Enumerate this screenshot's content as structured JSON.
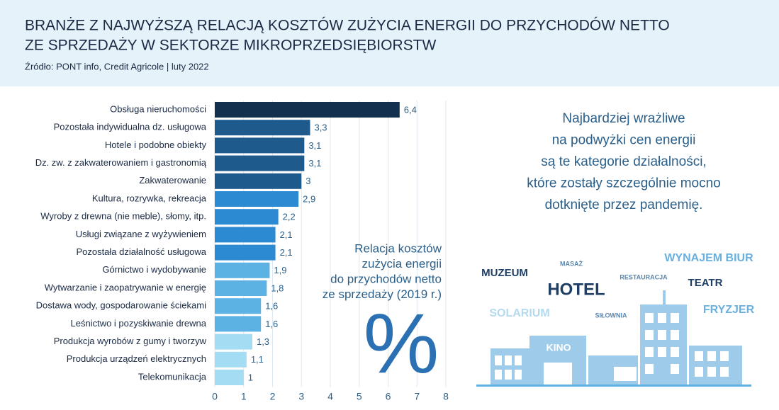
{
  "header": {
    "title_lines": [
      "BRANŻE Z NAJWYŻSZĄ RELACJĄ KOSZTÓW ZUŻYCIA ENERGII DO PRZYCHODÓW NETTO",
      "ZE SPRZEDAŻY W SEKTORZE MIKROPRZEDSIĘBIORSTW"
    ],
    "source": "Źródło: PONT info, Credit Agricole | luty 2022"
  },
  "chart_data": {
    "type": "hbar",
    "categories": [
      "Obsługa nieruchomości",
      "Pozostała indywidualna dz. usługowa",
      "Hotele i podobne obiekty",
      "Dz. zw. z zakwaterowaniem i gastronomią",
      "Zakwaterowanie",
      "Kultura, rozrywka, rekreacja",
      "Wyroby z drewna (nie meble), słomy, itp.",
      "Usługi związane z wyżywieniem",
      "Pozostała działalność usługowa",
      "Górnictwo i wydobywanie",
      "Wytwarzanie i zaopatrywanie w energię",
      "Dostawa wody, gospodarowanie ściekami",
      "Leśnictwo i pozyskiwanie drewna",
      "Produkcja wyrobów z gumy i tworzyw",
      "Produkcja urządzeń elektrycznych",
      "Telekomunikacja"
    ],
    "values": [
      6.4,
      3.3,
      3.1,
      3.1,
      3,
      2.9,
      2.2,
      2.1,
      2.1,
      1.9,
      1.8,
      1.6,
      1.6,
      1.3,
      1.1,
      1
    ],
    "value_labels": [
      "6,4",
      "3,3",
      "3,1",
      "3,1",
      "3",
      "2,9",
      "2,2",
      "2,1",
      "2,1",
      "1,9",
      "1,8",
      "1,6",
      "1,6",
      "1,3",
      "1,1",
      "1"
    ],
    "colors": [
      "#14304f",
      "#1f5a8d",
      "#1f5a8d",
      "#1f5a8d",
      "#1f5a8d",
      "#2c8ad2",
      "#2c8ad2",
      "#2c8ad2",
      "#2c8ad2",
      "#5cb2e2",
      "#5cb2e2",
      "#5cb2e2",
      "#5cb2e2",
      "#a3dcf3",
      "#a3dcf3",
      "#a3dcf3"
    ],
    "xlim": [
      0,
      8
    ],
    "xticks": [
      0,
      1,
      2,
      3,
      4,
      5,
      6,
      7,
      8
    ],
    "grid": true,
    "annotation_lines": [
      "Relacja kosztów",
      "zużycia energii",
      "do przychodów netto",
      "ze sprzedaży (2019 r.)"
    ],
    "unit_symbol": "%"
  },
  "side_text": [
    "Najbardziej wrażliwe",
    "na podwyżki cen energii",
    "są te kategorie działalności,",
    "które zostały szczególnie mocno",
    "dotknięte przez pandemię."
  ],
  "word_cloud": [
    "MUZEUM",
    "MASAŻ",
    "RESTAURACJA",
    "WYNAJEM BIUR",
    "HOTEL",
    "TEATR",
    "SOLARIUM",
    "SIŁOWNIA",
    "FRYZJER",
    "KINO"
  ]
}
